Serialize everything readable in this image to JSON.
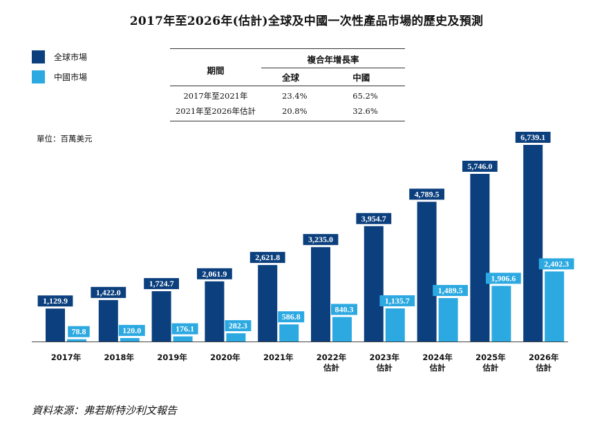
{
  "title": "2017年至2026年(估計)全球及中國一次性產品市場的歷史及預測",
  "legend": [
    {
      "label": "全球市場",
      "color": "#0b3f7d"
    },
    {
      "label": "中國市場",
      "color": "#2ca9e1"
    }
  ],
  "cagr_table": {
    "period_header": "期間",
    "group_header": "複合年增長率",
    "col_global": "全球",
    "col_china": "中國",
    "rows": [
      {
        "period": "2017年至2021年",
        "global": "23.4%",
        "china": "65.2%"
      },
      {
        "period": "2021年至2026年估計",
        "global": "20.8%",
        "china": "32.6%"
      }
    ]
  },
  "unit": "單位：百萬美元",
  "source": "資料來源：弗若斯特沙利文報告",
  "chart_data": {
    "type": "bar",
    "categories": [
      "2017年",
      "2018年",
      "2019年",
      "2020年",
      "2021年",
      "2022年\n估計",
      "2023年\n估計",
      "2024年\n估計",
      "2025年\n估計",
      "2026年\n估計"
    ],
    "series": [
      {
        "name": "全球市場",
        "color": "#0b3f7d",
        "values": [
          1129.9,
          1422.0,
          1724.7,
          2061.9,
          2621.8,
          3235.0,
          3954.7,
          4789.5,
          5746.0,
          6739.1
        ],
        "labels": [
          "1,129.9",
          "1,422.0",
          "1,724.7",
          "2,061.9",
          "2,621.8",
          "3,235.0",
          "3,954.7",
          "4,789.5",
          "5,746.0",
          "6,739.1"
        ]
      },
      {
        "name": "中國市場",
        "color": "#2ca9e1",
        "values": [
          78.8,
          120.0,
          176.1,
          282.3,
          586.8,
          840.3,
          1135.7,
          1489.5,
          1906.6,
          2402.3
        ],
        "labels": [
          "78.8",
          "120.0",
          "176.1",
          "282.3",
          "586.8",
          "840.3",
          "1,135.7",
          "1,489.5",
          "1,906.6",
          "2,402.3"
        ]
      }
    ],
    "ylim": [
      0,
      6739.1
    ],
    "grid": false,
    "legend_position": "top-left"
  }
}
